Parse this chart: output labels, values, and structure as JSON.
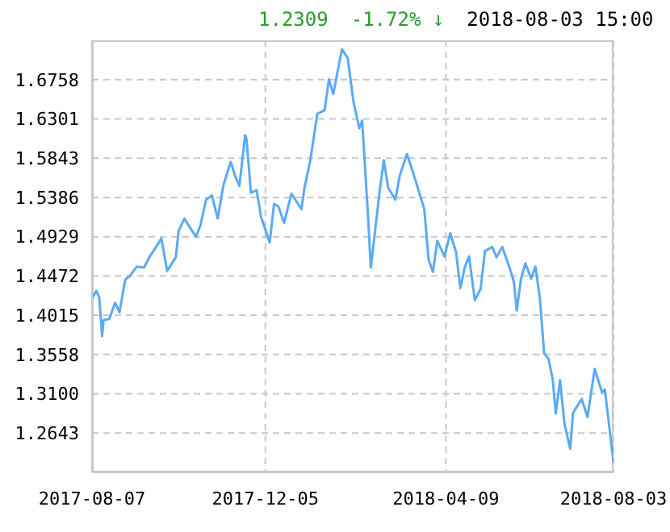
{
  "chart_data": {
    "type": "line",
    "annotations": [
      "1.2309",
      "-1.72% ↓",
      "2018-08-03 15:00"
    ],
    "x": [
      "2017-08-07",
      "2017-08-10",
      "2017-08-12",
      "2017-08-14",
      "2017-08-15",
      "2017-08-19",
      "2017-08-23",
      "2017-08-26",
      "2017-08-30",
      "2017-09-02",
      "2017-09-07",
      "2017-09-12",
      "2017-09-16",
      "2017-09-20",
      "2017-09-24",
      "2017-09-28",
      "2017-10-04",
      "2017-10-06",
      "2017-10-10",
      "2017-10-14",
      "2017-10-18",
      "2017-10-21",
      "2017-10-25",
      "2017-10-29",
      "2017-11-02",
      "2017-11-06",
      "2017-11-11",
      "2017-11-14",
      "2017-11-17",
      "2017-11-21",
      "2017-11-22",
      "2017-11-25",
      "2017-11-29",
      "2017-12-02",
      "2017-12-08",
      "2017-12-11",
      "2017-12-14",
      "2017-12-18",
      "2017-12-23",
      "2017-12-30",
      "2018-01-01",
      "2018-01-05",
      "2018-01-10",
      "2018-01-15",
      "2018-01-18",
      "2018-01-21",
      "2018-01-27",
      "2018-01-31",
      "2018-02-04",
      "2018-02-08",
      "2018-02-10",
      "2018-02-14",
      "2018-02-16",
      "2018-02-22",
      "2018-02-25",
      "2018-02-28",
      "2018-03-05",
      "2018-03-08",
      "2018-03-13",
      "2018-03-17",
      "2018-03-25",
      "2018-03-28",
      "2018-03-31",
      "2018-04-03",
      "2018-04-08",
      "2018-04-12",
      "2018-04-16",
      "2018-04-19",
      "2018-04-22",
      "2018-04-25",
      "2018-04-29",
      "2018-05-03",
      "2018-05-06",
      "2018-05-11",
      "2018-05-14",
      "2018-05-18",
      "2018-05-23",
      "2018-05-26",
      "2018-05-28",
      "2018-05-31",
      "2018-06-03",
      "2018-06-07",
      "2018-06-10",
      "2018-06-13",
      "2018-06-16",
      "2018-06-19",
      "2018-06-22",
      "2018-06-24",
      "2018-06-27",
      "2018-06-30",
      "2018-07-04",
      "2018-07-06",
      "2018-07-12",
      "2018-07-16",
      "2018-07-21",
      "2018-07-26",
      "2018-07-28",
      "2018-08-03"
    ],
    "series": [
      {
        "color": "#5aaaf5",
        "values": [
          1.421,
          1.43,
          1.422,
          1.377,
          1.396,
          1.397,
          1.416,
          1.405,
          1.443,
          1.447,
          1.458,
          1.457,
          1.47,
          1.48,
          1.491,
          1.453,
          1.469,
          1.5,
          1.514,
          1.503,
          1.493,
          1.506,
          1.536,
          1.541,
          1.514,
          1.553,
          1.58,
          1.564,
          1.552,
          1.611,
          1.606,
          1.544,
          1.547,
          1.516,
          1.486,
          1.531,
          1.528,
          1.509,
          1.543,
          1.525,
          1.549,
          1.581,
          1.636,
          1.64,
          1.676,
          1.659,
          1.711,
          1.701,
          1.65,
          1.619,
          1.628,
          1.519,
          1.457,
          1.544,
          1.582,
          1.55,
          1.536,
          1.564,
          1.589,
          1.569,
          1.525,
          1.466,
          1.452,
          1.488,
          1.47,
          1.497,
          1.475,
          1.433,
          1.457,
          1.47,
          1.419,
          1.432,
          1.476,
          1.481,
          1.469,
          1.481,
          1.457,
          1.441,
          1.407,
          1.444,
          1.462,
          1.444,
          1.458,
          1.422,
          1.357,
          1.351,
          1.326,
          1.287,
          1.326,
          1.276,
          1.246,
          1.288,
          1.304,
          1.283,
          1.339,
          1.312,
          1.315,
          1.231
        ]
      }
    ],
    "xlim": [
      "2017-08-07",
      "2018-08-03"
    ],
    "xticks": [
      "2017-08-07",
      "2017-12-05",
      "2018-04-09",
      "2018-08-03"
    ],
    "ylim": [
      1.2186,
      1.7215
    ],
    "yticks": [
      1.2643,
      {
        "value": 1.31,
        "label": "1.3100"
      },
      1.3558,
      1.4015,
      1.4472,
      1.4929,
      1.5386,
      1.5843,
      1.6301,
      1.6758
    ],
    "grid": true,
    "line_style": "solid",
    "marker": "none"
  }
}
